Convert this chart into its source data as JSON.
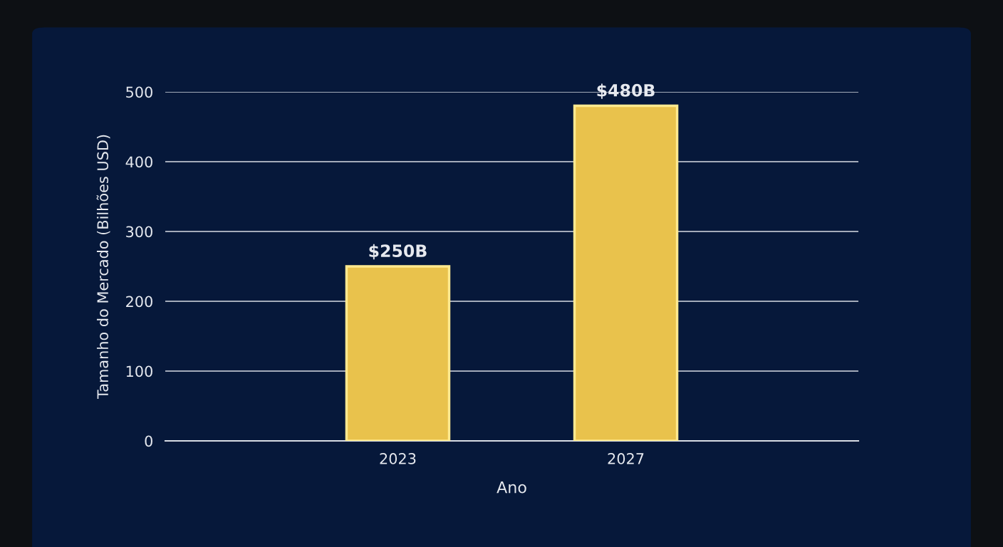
{
  "chart_data": {
    "type": "bar",
    "xlabel": "Ano",
    "ylabel": "Tamanho do Mercado (Bilhões USD)",
    "categories": [
      "2023",
      "2027"
    ],
    "values": [
      250,
      480
    ],
    "value_labels": [
      "$250B",
      "$480B"
    ],
    "color": "#e9c24c",
    "ylim": [
      0,
      500
    ],
    "yticks": [
      0,
      100,
      200,
      300,
      400,
      500
    ],
    "grid": "y"
  }
}
